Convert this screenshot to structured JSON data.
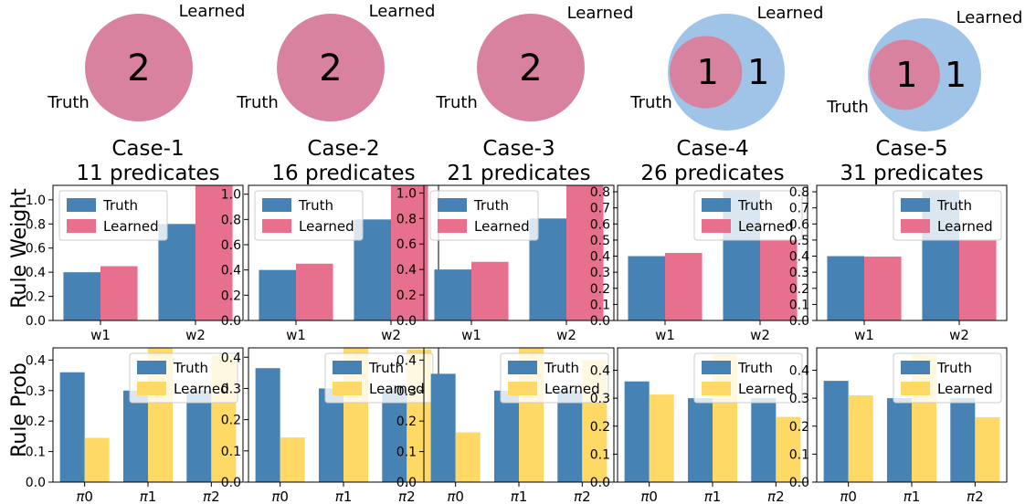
{
  "row_labels": {
    "weight": "Rule Weight",
    "prob": "Rule Prob"
  },
  "legend": {
    "truth": "Truth",
    "learned": "Learned"
  },
  "colors": {
    "truth_bar": "#4682b4",
    "learned_weight_bar": "#e8708f",
    "learned_prob_bar": "#ffd966",
    "venn_overlap": "#d9829f",
    "venn_learned": "#a0c4e8"
  },
  "chart_data": [
    {
      "case": "Case-1",
      "subtitle": "11 predicates",
      "venn": {
        "labels": [
          "Truth",
          "Learned"
        ],
        "only_truth": "",
        "overlap": "2",
        "only_learned": ""
      },
      "weights": {
        "type": "bar",
        "categories": [
          "w1",
          "w2"
        ],
        "ylim": [
          0,
          1.12
        ],
        "yticks": [
          "0.0",
          "0.2",
          "0.4",
          "0.6",
          "0.8",
          "1.0"
        ],
        "series": [
          {
            "name": "Truth",
            "values": [
              0.4,
              0.8
            ]
          },
          {
            "name": "Learned",
            "values": [
              0.45,
              1.12
            ]
          }
        ]
      },
      "probs": {
        "type": "bar",
        "categories": [
          "π0",
          "π1",
          "π2"
        ],
        "ylim": [
          0,
          0.44
        ],
        "yticks": [
          "0.0",
          "0.1",
          "0.2",
          "0.3",
          "0.4"
        ],
        "series": [
          {
            "name": "Truth",
            "values": [
              0.36,
              0.3,
              0.3
            ]
          },
          {
            "name": "Learned",
            "values": [
              0.145,
              0.44,
              0.415
            ]
          }
        ]
      }
    },
    {
      "case": "Case-2",
      "subtitle": "16 predicates",
      "venn": {
        "labels": [
          "Truth",
          "Learned"
        ],
        "only_truth": "",
        "overlap": "2",
        "only_learned": ""
      },
      "weights": {
        "type": "bar",
        "categories": [
          "w1",
          "w2"
        ],
        "ylim": [
          0,
          1.07
        ],
        "yticks": [
          "0.0",
          "0.2",
          "0.4",
          "0.6",
          "0.8",
          "1.0"
        ],
        "series": [
          {
            "name": "Truth",
            "values": [
              0.4,
              0.8
            ]
          },
          {
            "name": "Learned",
            "values": [
              0.45,
              1.07
            ]
          }
        ]
      },
      "probs": {
        "type": "bar",
        "categories": [
          "π0",
          "π1",
          "π2"
        ],
        "ylim": [
          0,
          0.43
        ],
        "yticks": [
          "0.0",
          "0.1",
          "0.2",
          "0.3",
          "0.4"
        ],
        "series": [
          {
            "name": "Truth",
            "values": [
              0.365,
              0.3,
              0.3
            ]
          },
          {
            "name": "Learned",
            "values": [
              0.143,
              0.43,
              0.425
            ]
          }
        ]
      }
    },
    {
      "case": "Case-3",
      "subtitle": "21 predicates",
      "venn": {
        "labels": [
          "Truth",
          "Learned"
        ],
        "only_truth": "",
        "overlap": "2",
        "only_learned": ""
      },
      "weights": {
        "type": "bar",
        "categories": [
          "w1",
          "w2"
        ],
        "ylim": [
          0,
          1.06
        ],
        "yticks": [
          "0.0",
          "0.2",
          "0.4",
          "0.6",
          "0.8",
          "1.0"
        ],
        "series": [
          {
            "name": "Truth",
            "values": [
              0.4,
              0.8
            ]
          },
          {
            "name": "Learned",
            "values": [
              0.46,
              1.06
            ]
          }
        ]
      },
      "probs": {
        "type": "bar",
        "categories": [
          "π0",
          "π1",
          "π2"
        ],
        "ylim": [
          0,
          0.44
        ],
        "yticks": [
          "0.0",
          "0.1",
          "0.2",
          "0.3",
          "0.4"
        ],
        "series": [
          {
            "name": "Truth",
            "values": [
              0.355,
              0.3,
              0.3
            ]
          },
          {
            "name": "Learned",
            "values": [
              0.163,
              0.44,
              0.4
            ]
          }
        ]
      }
    },
    {
      "case": "Case-4",
      "subtitle": "26 predicates",
      "venn": {
        "labels": [
          "Truth",
          "Learned"
        ],
        "only_truth": "",
        "overlap": "1",
        "only_learned": "1"
      },
      "weights": {
        "type": "bar",
        "categories": [
          "w1",
          "w2"
        ],
        "ylim": [
          0,
          0.84
        ],
        "yticks": [
          "0.0",
          "0.1",
          "0.2",
          "0.3",
          "0.4",
          "0.5",
          "0.6",
          "0.7",
          "0.8"
        ],
        "series": [
          {
            "name": "Truth",
            "values": [
              0.4,
              0.8
            ]
          },
          {
            "name": "Learned",
            "values": [
              0.42,
              0.5
            ]
          }
        ]
      },
      "probs": {
        "type": "bar",
        "categories": [
          "π0",
          "π1",
          "π2"
        ],
        "ylim": [
          0,
          0.48
        ],
        "yticks": [
          "0.0",
          "0.1",
          "0.2",
          "0.3",
          "0.4"
        ],
        "series": [
          {
            "name": "Truth",
            "values": [
              0.36,
              0.3,
              0.3
            ]
          },
          {
            "name": "Learned",
            "values": [
              0.313,
              0.455,
              0.233
            ]
          }
        ]
      }
    },
    {
      "case": "Case-5",
      "subtitle": "31 predicates",
      "venn": {
        "labels": [
          "Truth",
          "Learned"
        ],
        "only_truth": "",
        "overlap": "1",
        "only_learned": "1"
      },
      "weights": {
        "type": "bar",
        "categories": [
          "w1",
          "w2"
        ],
        "ylim": [
          0,
          0.84
        ],
        "yticks": [
          "0.0",
          "0.1",
          "0.2",
          "0.3",
          "0.4",
          "0.5",
          "0.6",
          "0.7",
          "0.8"
        ],
        "series": [
          {
            "name": "Truth",
            "values": [
              0.4,
              0.8
            ]
          },
          {
            "name": "Learned",
            "values": [
              0.397,
              0.5
            ]
          }
        ]
      },
      "probs": {
        "type": "bar",
        "categories": [
          "π0",
          "π1",
          "π2"
        ],
        "ylim": [
          0,
          0.48
        ],
        "yticks": [
          "0.0",
          "0.1",
          "0.2",
          "0.3",
          "0.4"
        ],
        "series": [
          {
            "name": "Truth",
            "values": [
              0.362,
              0.3,
              0.3
            ]
          },
          {
            "name": "Learned",
            "values": [
              0.31,
              0.455,
              0.232
            ]
          }
        ]
      }
    }
  ]
}
